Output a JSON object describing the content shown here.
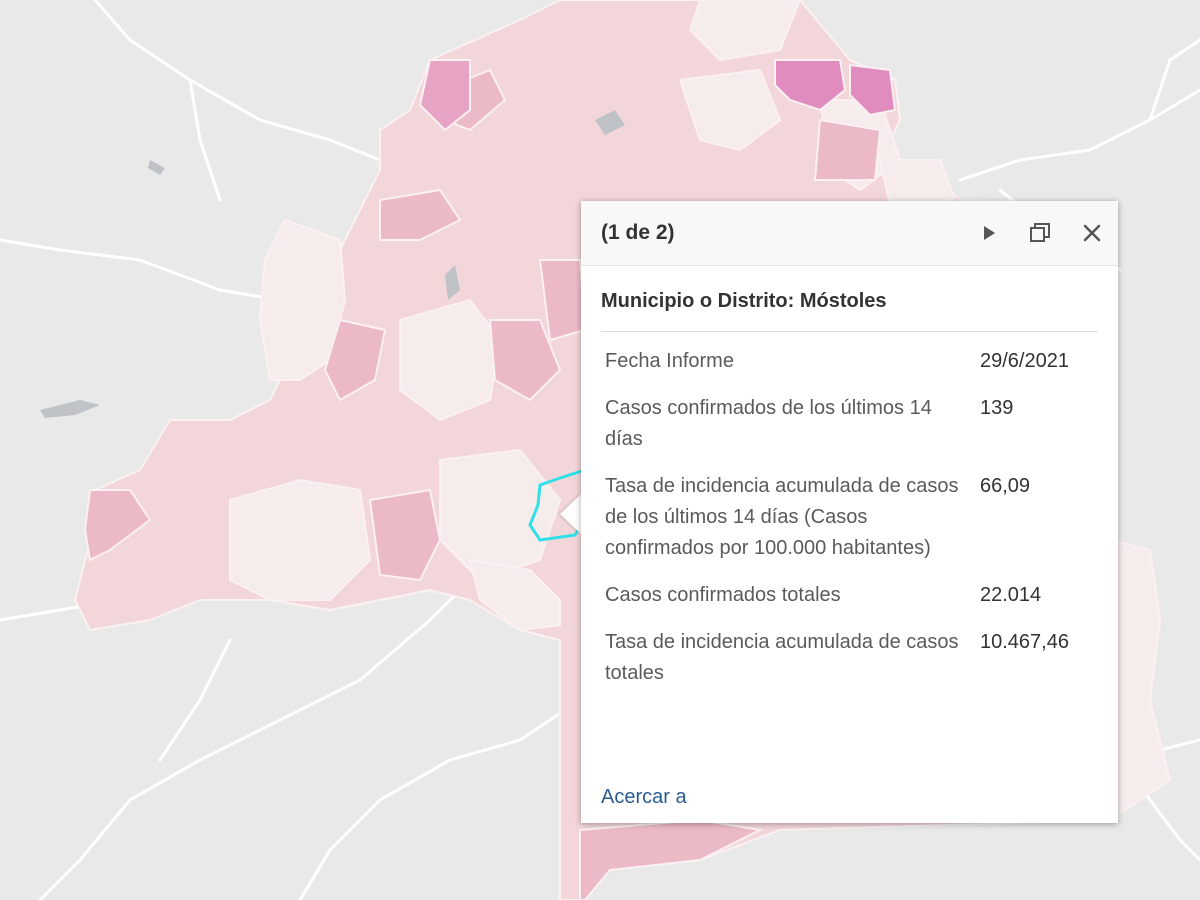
{
  "map": {
    "colors": {
      "background": "#e9e9e9",
      "region_base": "#f2d6d9",
      "region_light": "#f6ecec",
      "region_medium": "#ecbac6",
      "region_dark": "#e08cbe",
      "selected_outline": "#2fe0e8",
      "roads": "#ffffff"
    },
    "selected_feature_outline": "cyan"
  },
  "popup": {
    "counter": "(1 de 2)",
    "title": "Municipio o Distrito: Móstoles",
    "buttons": {
      "next_icon": "play-next-icon",
      "dock_icon": "dock-maximize-icon",
      "close_icon": "close-icon"
    },
    "attributes": [
      {
        "label": "Fecha Informe",
        "value": "29/6/2021"
      },
      {
        "label": "Casos confirmados de los últimos 14 días",
        "value": "139"
      },
      {
        "label": "Tasa de incidencia acumulada de casos de los últimos 14 días (Casos confirmados por 100.000 habitantes)",
        "value": "66,09"
      },
      {
        "label": "Casos confirmados totales",
        "value": "22.014"
      },
      {
        "label": "Tasa de incidencia acumulada de casos totales",
        "value": "10.467,46"
      }
    ],
    "zoom_link": "Acercar a"
  }
}
